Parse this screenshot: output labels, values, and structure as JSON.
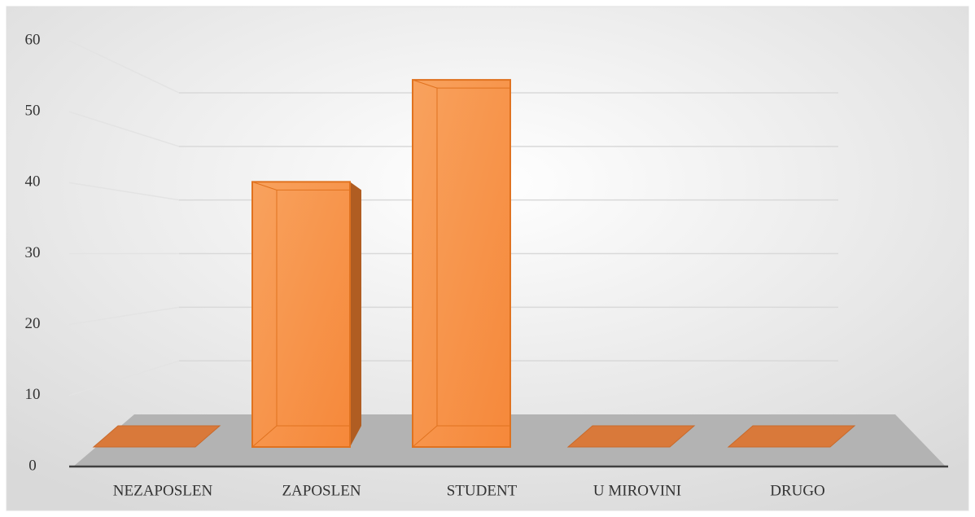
{
  "chart_data": {
    "type": "bar3d",
    "categories": [
      "NEZAPOSLEN",
      "ZAPOSLEN",
      "STUDENT",
      "U MIROVINI",
      "DRUGO"
    ],
    "values": [
      0,
      39,
      54,
      0,
      0
    ],
    "color": "#f79646",
    "ylim": [
      0,
      60
    ],
    "yticks": [
      0,
      10,
      20,
      30,
      40,
      50,
      60
    ],
    "grid": true
  }
}
